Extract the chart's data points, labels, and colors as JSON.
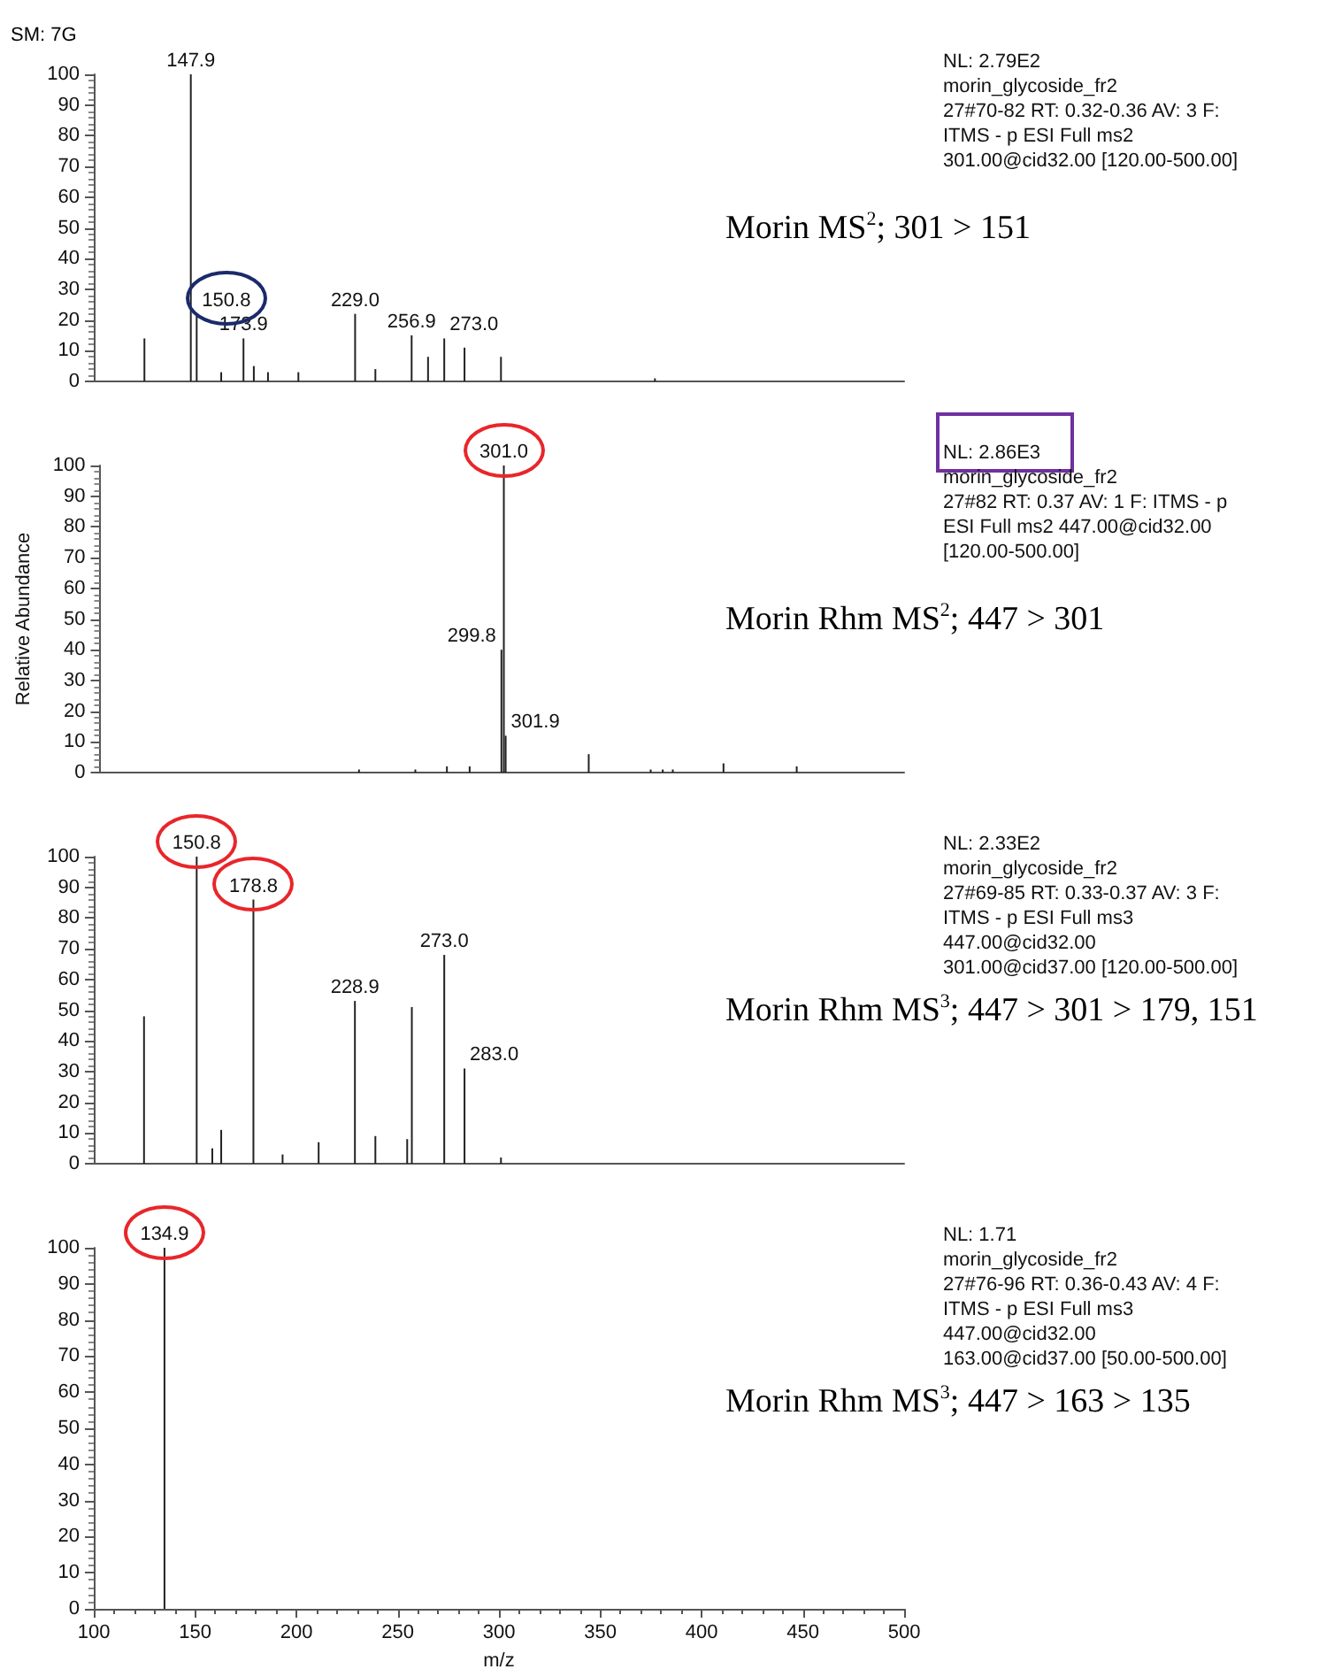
{
  "chart_data": [
    {
      "type": "bar",
      "title": "Morin MS$^{2}$; 301 > 151",
      "subtitle": "SM: 7G",
      "color": "#222222",
      "xlim": [
        100,
        500
      ],
      "ylim": [
        0,
        100
      ],
      "yticks": [
        0,
        10,
        20,
        30,
        40,
        50,
        60,
        70,
        80,
        90,
        100
      ],
      "tick_labels": "y",
      "x": [
        125.0,
        147.9,
        150.8,
        162.9,
        173.9,
        179.0,
        186.0,
        201.0,
        229.0,
        239.0,
        256.9,
        265.0,
        273.0,
        283.0,
        301.0,
        377.0
      ],
      "values": [
        14,
        100,
        22,
        3,
        14,
        5,
        3,
        3,
        22,
        4,
        15,
        8,
        14,
        11,
        8,
        1
      ],
      "annotations": [
        {
          "text": "147.9",
          "x": 147.9,
          "y": 100
        },
        {
          "text": "150.8",
          "x": 150.8,
          "y": 22
        },
        {
          "text": "173.9",
          "x": 173.9,
          "y": 14
        },
        {
          "text": "229.0",
          "x": 229.0,
          "y": 22
        },
        {
          "text": "256.9",
          "x": 256.9,
          "y": 15
        },
        {
          "text": "273.0",
          "x": 273.0,
          "y": 14
        },
        "NL: 2.79E2",
        "morin_glycoside_fr2",
        "27#70-82  RT: 0.32-0.36  AV: 3 F:",
        "ITMS - p ESI Full ms2",
        "301.00@cid32.00 [120.00-500.00]"
      ]
    },
    {
      "type": "bar",
      "title": "Morin Rhm MS$^{2}$; 447 > 301",
      "ylabel": "Relative Abundance",
      "color": "#222222",
      "xlim": [
        100,
        500
      ],
      "ylim": [
        0,
        100
      ],
      "yticks": [
        0,
        10,
        20,
        30,
        40,
        50,
        60,
        70,
        80,
        90,
        100
      ],
      "tick_labels": "y",
      "x": [
        229.0,
        257.0,
        272.7,
        284.0,
        299.8,
        301.0,
        301.9,
        343.2,
        374.0,
        380.0,
        385.0,
        410.2,
        446.6
      ],
      "values": [
        1,
        1,
        2,
        2,
        40,
        100,
        12,
        6,
        1,
        1,
        1,
        3,
        2
      ],
      "annotations": [
        {
          "text": "301.0",
          "x": 301.0,
          "y": 100
        },
        {
          "text": "299.8",
          "x": 299.8,
          "y": 40
        },
        {
          "text": "301.9",
          "x": 301.9,
          "y": 12
        },
        "NL: 2.86E3",
        "morin_glycoside_fr2",
        "27#82  RT: 0.37  AV: 1 F: ITMS - p",
        "ESI Full ms2 447.00@cid32.00",
        "[120.00-500.00]"
      ]
    },
    {
      "type": "bar",
      "title": "Morin Rhm MS$^{3}$; 447 > 301 > 179, 151",
      "color": "#222222",
      "xlim": [
        100,
        500
      ],
      "ylim": [
        0,
        100
      ],
      "yticks": [
        0,
        10,
        20,
        30,
        40,
        50,
        60,
        70,
        80,
        90,
        100
      ],
      "tick_labels": "y",
      "x": [
        124.8,
        150.8,
        158.5,
        162.9,
        178.8,
        193.2,
        211.0,
        228.9,
        239.0,
        254.7,
        257.0,
        273.0,
        283.0,
        301.0
      ],
      "values": [
        48,
        100,
        5,
        11,
        86,
        3,
        7,
        53,
        9,
        8,
        51,
        68,
        31,
        2
      ],
      "annotations": [
        {
          "text": "150.8",
          "x": 150.8,
          "y": 100
        },
        {
          "text": "178.8",
          "x": 178.8,
          "y": 86
        },
        {
          "text": "228.9",
          "x": 228.9,
          "y": 53
        },
        {
          "text": "273.0",
          "x": 273.0,
          "y": 68
        },
        {
          "text": "283.0",
          "x": 283.0,
          "y": 31
        },
        "NL: 2.33E2",
        "morin_glycoside_fr2",
        "27#69-85  RT: 0.33-0.37  AV: 3 F:",
        "ITMS - p ESI Full ms3",
        "447.00@cid32.00",
        "301.00@cid37.00 [120.00-500.00]"
      ]
    },
    {
      "type": "bar",
      "title": "Morin Rhm MS$^{3}$; 447 > 163 > 135",
      "xlabel": "m/z",
      "color": "#222222",
      "xlim": [
        100,
        500
      ],
      "ylim": [
        0,
        100
      ],
      "xticks": [
        100,
        150,
        200,
        250,
        300,
        350,
        400,
        450,
        500
      ],
      "yticks": [
        0,
        10,
        20,
        30,
        40,
        50,
        60,
        70,
        80,
        90,
        100
      ],
      "x": [
        134.9
      ],
      "values": [
        100
      ],
      "annotations": [
        {
          "text": "134.9",
          "x": 134.9,
          "y": 100
        },
        "NL: 1.71",
        "morin_glycoside_fr2",
        "27#76-96  RT: 0.36-0.43  AV: 4 F:",
        "ITMS - p ESI Full ms3",
        "447.00@cid32.00",
        "163.00@cid37.00 [50.00-500.00]"
      ]
    }
  ]
}
